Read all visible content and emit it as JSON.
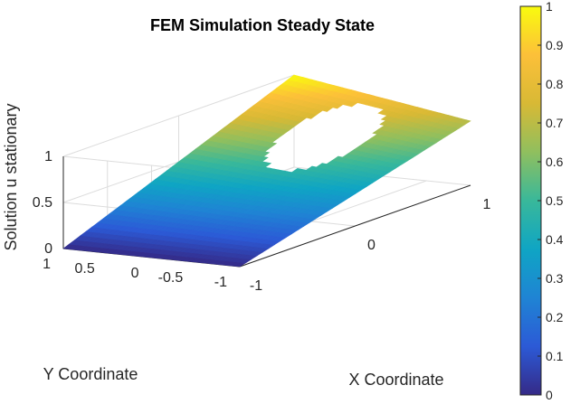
{
  "chart_data": {
    "type": "surface3d",
    "title": "FEM Simulation Steady State",
    "xlabel": "X Coordinate",
    "ylabel": "Y Coordinate",
    "zlabel": "Solution u stationary",
    "xlim": [
      -1,
      1
    ],
    "ylim": [
      -1,
      1
    ],
    "zlim": [
      0,
      1
    ],
    "xticks": [
      "-1",
      "0",
      "1"
    ],
    "yticks": [
      "-1",
      "-0.5",
      "0",
      "0.5",
      "1"
    ],
    "zticks": [
      "0",
      "0.5",
      "1"
    ],
    "colormap": "parula",
    "colorbar": {
      "range": [
        0,
        1
      ],
      "ticks": [
        "0",
        "0.1",
        "0.2",
        "0.3",
        "0.4",
        "0.5",
        "0.6",
        "0.7",
        "0.8",
        "0.9",
        "1"
      ]
    },
    "domain": {
      "shape": "square with circular hole and slit",
      "hole_center": [
        0.5,
        0.0
      ],
      "hole_radius": 0.4,
      "slit": {
        "y": 0.0,
        "x_from": 0.0,
        "x_to": 0.1
      }
    },
    "surface_values": [
      {
        "x": -1,
        "y": -1,
        "u": 0.0
      },
      {
        "x": -1,
        "y": 1,
        "u": 0.0
      },
      {
        "x": 1,
        "y": 1,
        "u": 1.0
      },
      {
        "x": 1,
        "y": -1,
        "u": 0.7
      },
      {
        "x": 0,
        "y": 0,
        "u": 0.3
      }
    ]
  },
  "colors": {
    "colormap_stops": [
      "#352a87",
      "#2c5ad6",
      "#1f84d4",
      "#0fa5c4",
      "#39b89a",
      "#90bf5e",
      "#d8b935",
      "#fcc039",
      "#f9fb0e"
    ]
  }
}
